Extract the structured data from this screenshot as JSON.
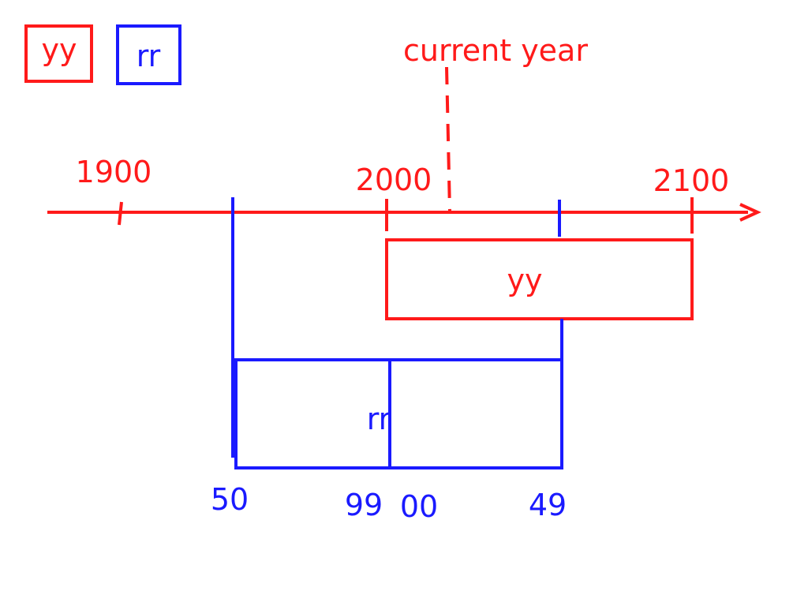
{
  "colors": {
    "yy": "#ff1a1a",
    "rr": "#1a1aff"
  },
  "legend": {
    "yy_label": "yy",
    "rr_label": "rr"
  },
  "timeline": {
    "current_year_label": "current year",
    "ticks": [
      "1900",
      "2000",
      "2100"
    ]
  },
  "yy_box": {
    "label": "yy"
  },
  "rr_box": {
    "label": "rr",
    "ticks": [
      "50",
      "99",
      "00",
      "49"
    ]
  }
}
